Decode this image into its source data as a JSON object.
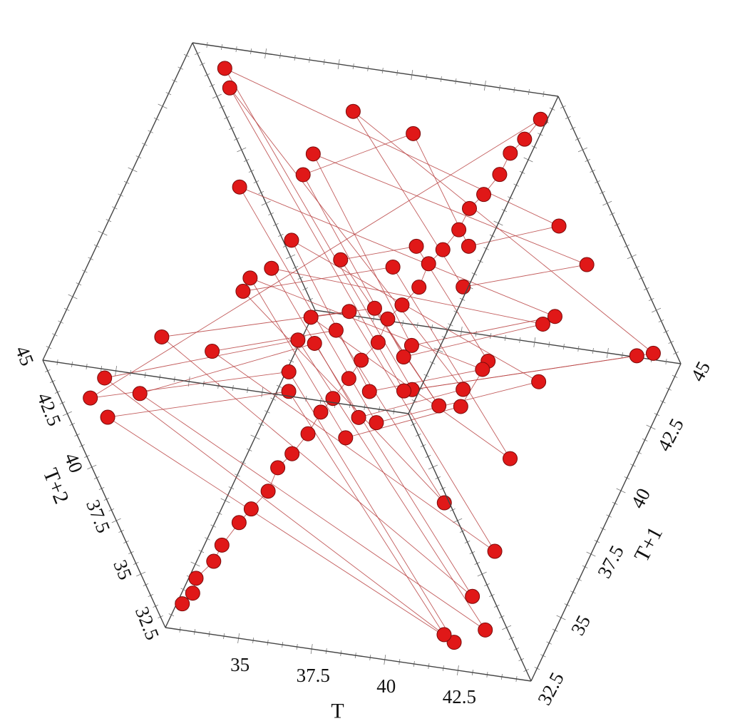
{
  "chart_data": {
    "type": "scatter",
    "chart_kind": "3d-scatter-with-lines",
    "title": "",
    "axes": {
      "x": {
        "label": "T",
        "range": [
          32.5,
          45
        ],
        "ticks": [
          "35",
          "37.5",
          "40",
          "42.5"
        ]
      },
      "y": {
        "label": "T+1",
        "range": [
          32.5,
          45
        ],
        "ticks": [
          "32.5",
          "35",
          "37.5",
          "40",
          "42.5",
          "45"
        ]
      },
      "z": {
        "label": "T+2",
        "range": [
          32.5,
          45
        ],
        "ticks": [
          "32.5",
          "35",
          "37.5",
          "40",
          "42.5",
          "45"
        ]
      }
    },
    "marker_color": "#e01818",
    "line_color": "#b84040",
    "box_color": "#444444",
    "series": [
      {
        "points": [
          [
            33.0,
            33.1,
            33.0
          ],
          [
            33.3,
            33.4,
            33.2
          ],
          [
            33.5,
            33.6,
            33.7
          ],
          [
            34.0,
            34.1,
            34.0
          ],
          [
            34.4,
            34.3,
            34.6
          ],
          [
            34.8,
            35.0,
            34.9
          ],
          [
            35.3,
            35.2,
            35.4
          ],
          [
            35.7,
            35.8,
            35.6
          ],
          [
            36.1,
            36.2,
            36.3
          ],
          [
            36.6,
            36.5,
            36.7
          ],
          [
            37.0,
            37.1,
            37.0
          ],
          [
            37.4,
            37.6,
            37.5
          ],
          [
            37.9,
            37.8,
            38.0
          ],
          [
            38.3,
            38.4,
            38.3
          ],
          [
            38.8,
            38.7,
            38.9
          ],
          [
            39.2,
            39.3,
            39.1
          ],
          [
            39.6,
            39.7,
            39.8
          ],
          [
            40.1,
            40.0,
            40.2
          ],
          [
            40.5,
            40.6,
            40.4
          ],
          [
            40.9,
            41.0,
            41.1
          ],
          [
            41.4,
            41.3,
            41.5
          ],
          [
            41.8,
            41.9,
            41.8
          ],
          [
            42.2,
            42.3,
            42.4
          ],
          [
            42.7,
            42.6,
            42.8
          ],
          [
            43.1,
            43.2,
            43.1
          ],
          [
            43.5,
            43.6,
            43.7
          ],
          [
            44.0,
            43.9,
            44.1
          ],
          [
            44.4,
            44.5,
            44.4
          ],
          [
            33.0,
            33.2,
            42.5
          ],
          [
            33.1,
            42.0,
            33.3
          ],
          [
            42.4,
            33.0,
            33.2
          ],
          [
            33.4,
            33.1,
            41.8
          ],
          [
            33.2,
            41.5,
            33.0
          ],
          [
            41.9,
            33.3,
            33.1
          ],
          [
            33.6,
            33.5,
            43.2
          ],
          [
            33.1,
            43.0,
            33.6
          ],
          [
            43.4,
            33.4,
            33.5
          ],
          [
            34.2,
            34.0,
            42.0
          ],
          [
            34.0,
            42.6,
            34.1
          ],
          [
            42.8,
            34.2,
            34.0
          ],
          [
            35.0,
            35.1,
            43.5
          ],
          [
            35.2,
            43.3,
            35.0
          ],
          [
            43.6,
            35.1,
            35.2
          ],
          [
            36.0,
            35.8,
            42.2
          ],
          [
            35.7,
            41.8,
            36.0
          ],
          [
            41.7,
            36.1,
            35.9
          ],
          [
            37.1,
            37.0,
            43.8
          ],
          [
            37.2,
            43.7,
            37.0
          ],
          [
            43.9,
            37.2,
            37.1
          ],
          [
            38.2,
            38.1,
            41.5
          ],
          [
            38.0,
            41.2,
            38.2
          ],
          [
            41.4,
            38.1,
            38.0
          ],
          [
            39.3,
            39.2,
            43.1
          ],
          [
            39.1,
            42.9,
            39.3
          ],
          [
            43.0,
            39.2,
            39.1
          ],
          [
            40.2,
            40.4,
            35.0
          ],
          [
            40.3,
            34.8,
            40.2
          ],
          [
            34.9,
            40.1,
            40.3
          ],
          [
            41.1,
            41.0,
            36.2
          ],
          [
            41.0,
            35.9,
            41.2
          ],
          [
            36.1,
            41.2,
            41.0
          ],
          [
            42.0,
            42.1,
            34.5
          ],
          [
            42.2,
            34.2,
            42.0
          ],
          [
            34.4,
            42.0,
            42.2
          ],
          [
            43.0,
            42.9,
            36.8
          ],
          [
            42.8,
            36.5,
            43.0
          ],
          [
            36.7,
            43.1,
            42.9
          ],
          [
            44.0,
            44.1,
            38.0
          ],
          [
            44.2,
            38.2,
            44.0
          ],
          [
            38.1,
            44.0,
            44.1
          ],
          [
            44.6,
            44.5,
            33.5
          ],
          [
            44.5,
            33.7,
            44.6
          ],
          [
            33.6,
            44.6,
            44.5
          ],
          [
            43.8,
            43.9,
            40.0
          ],
          [
            43.7,
            39.8,
            43.9
          ],
          [
            40.1,
            43.8,
            43.7
          ],
          [
            36.5,
            42.5,
            42.6
          ],
          [
            42.4,
            36.4,
            42.5
          ],
          [
            42.6,
            42.7,
            36.6
          ],
          [
            35.5,
            40.5,
            40.4
          ],
          [
            40.6,
            35.4,
            40.5
          ],
          [
            40.4,
            40.6,
            35.6
          ],
          [
            33.8,
            44.2,
            44.1
          ],
          [
            44.0,
            33.9,
            44.2
          ],
          [
            44.3,
            44.1,
            33.8
          ]
        ]
      }
    ]
  }
}
